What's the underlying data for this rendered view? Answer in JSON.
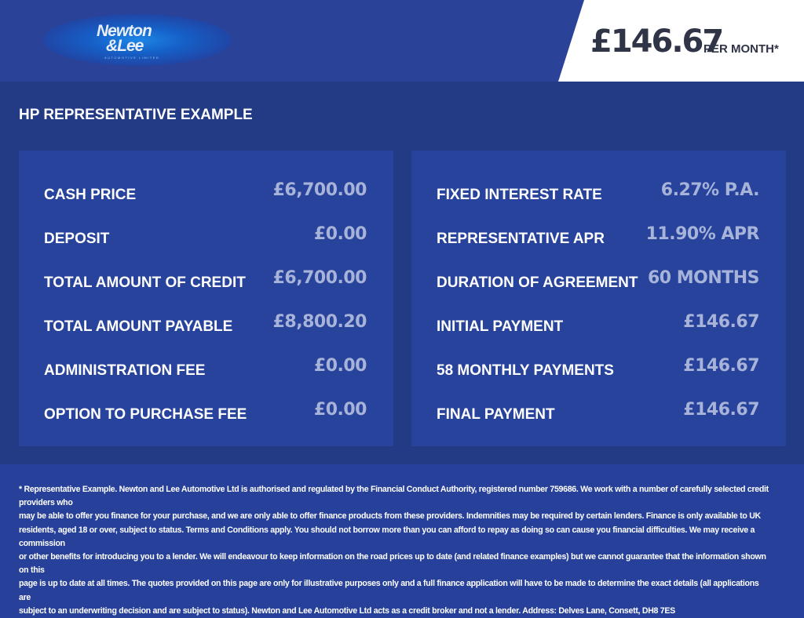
{
  "header": {
    "logo": {
      "line1": "Newton",
      "line2": "&Lee",
      "line3": "AUTOMOTIVE LIMITED"
    },
    "price": "£146.67",
    "per_month": "PER MONTH*"
  },
  "title": "HP REPRESENTATIVE EXAMPLE",
  "left": [
    {
      "label": "CASH PRICE",
      "value": "£6,700.00"
    },
    {
      "label": "DEPOSIT",
      "value": "£0.00"
    },
    {
      "label": "TOTAL AMOUNT OF CREDIT",
      "value": "£6,700.00"
    },
    {
      "label": "TOTAL AMOUNT PAYABLE",
      "value": "£8,800.20"
    },
    {
      "label": "ADMINISTRATION FEE",
      "value": "£0.00"
    },
    {
      "label": "OPTION TO PURCHASE FEE",
      "value": "£0.00"
    }
  ],
  "right": [
    {
      "label": "FIXED INTEREST RATE",
      "value": "6.27% P.A."
    },
    {
      "label": "REPRESENTATIVE APR",
      "value": "11.90% APR"
    },
    {
      "label": "DURATION OF AGREEMENT",
      "value": "60 MONTHS"
    },
    {
      "label": "INITIAL PAYMENT",
      "value": "£146.67"
    },
    {
      "label": "58 MONTHLY PAYMENTS",
      "value": "£146.67"
    },
    {
      "label": "FINAL PAYMENT",
      "value": "£146.67"
    }
  ],
  "footer": [
    "* Representative Example. Newton and Lee Automotive Ltd is authorised and regulated by the Financial Conduct Authority, registered number 759686. We work with a number of carefully selected credit providers who",
    "may be able to offer you finance for your purchase, and we are only able to offer finance products from these providers. Indemnities may be required by certain lenders. Finance is only available to UK",
    "residents, aged 18 or over, subject to status. Terms and Conditions apply. You should not borrow more than you can afford to repay as doing so can cause you financial difficulties. We may receive a commission",
    "or other benefits for introducing you to a lender. We will endeavour to keep information on the road prices up to date (and related finance examples) but we cannot guarantee that the information shown on this",
    "page is up to date at all times. The quotes provided on this page are only for illustrative purposes only and a full finance application will have to be made to determine the exact details (all applications are",
    "subject to an underwriting decision and are subject to status). Newton and Lee Automotive Ltd acts as a credit broker and not a lender. Address: Delves Lane, Consett, DH8 7ES"
  ]
}
